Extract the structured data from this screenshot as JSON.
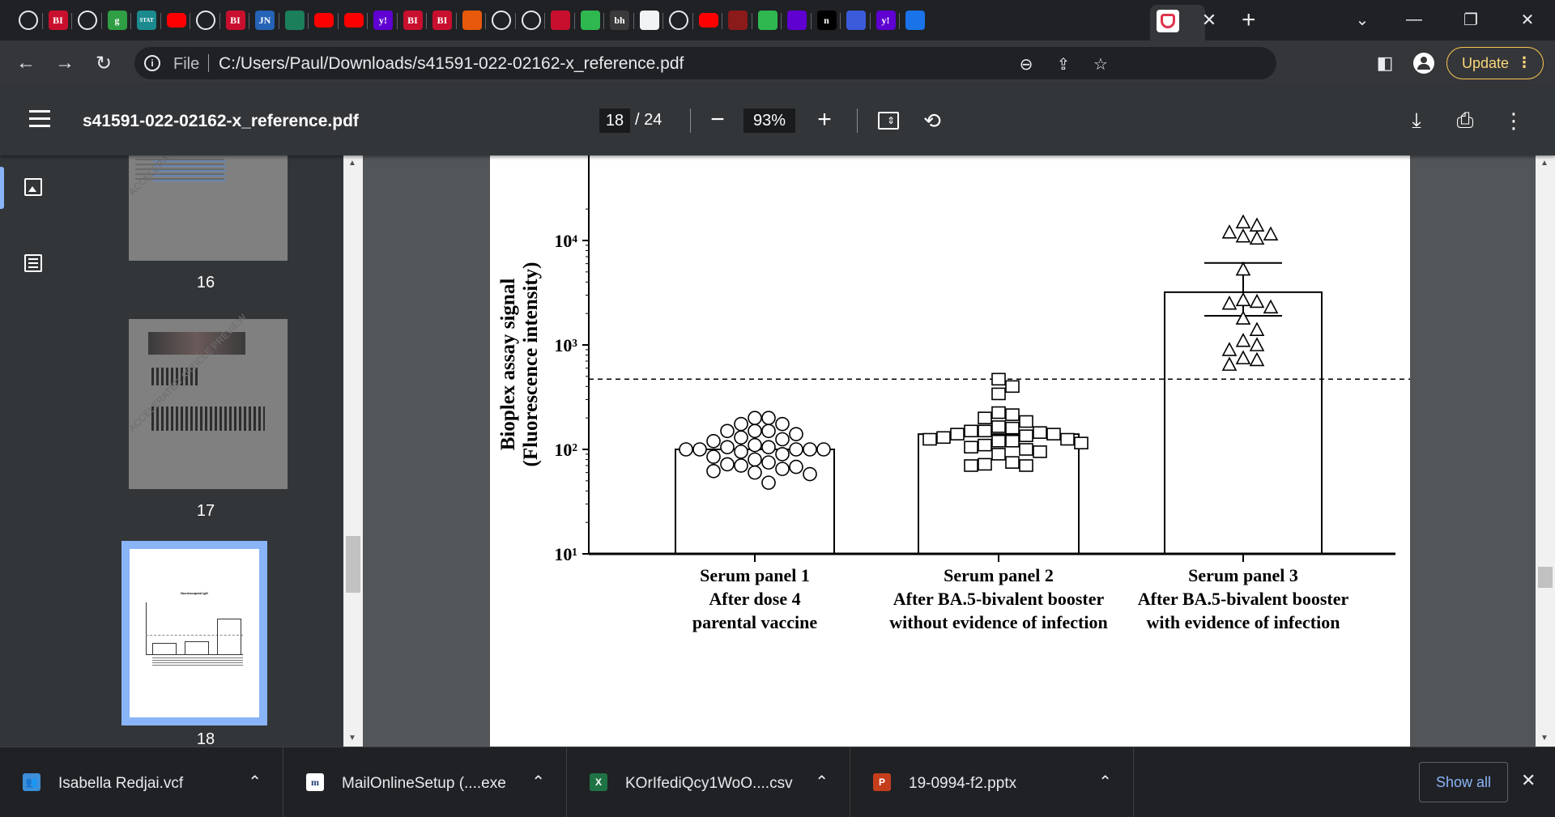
{
  "browser": {
    "tabs": [
      {
        "icon": "globe-icon",
        "text": ""
      },
      {
        "icon": "business-insider-icon",
        "text": "BI"
      },
      {
        "icon": "globe-icon",
        "text": ""
      },
      {
        "icon": "g-icon",
        "text": "g"
      },
      {
        "icon": "stat-icon",
        "text": "STAT"
      },
      {
        "icon": "youtube-icon",
        "text": ""
      },
      {
        "icon": "globe-icon",
        "text": ""
      },
      {
        "icon": "business-insider-icon",
        "text": "BI"
      },
      {
        "icon": "jn-icon",
        "text": "JN"
      },
      {
        "icon": "tree-icon",
        "text": ""
      },
      {
        "icon": "youtube-icon",
        "text": ""
      },
      {
        "icon": "youtube-icon",
        "text": ""
      },
      {
        "icon": "yahoo-icon",
        "text": "y!"
      },
      {
        "icon": "business-insider-icon",
        "text": "BI"
      },
      {
        "icon": "business-insider-icon",
        "text": "BI"
      },
      {
        "icon": "bookmarks-icon",
        "text": ""
      },
      {
        "icon": "globe-icon",
        "text": ""
      },
      {
        "icon": "globe-icon",
        "text": ""
      },
      {
        "icon": "mic-icon",
        "text": ""
      },
      {
        "icon": "play-icon",
        "text": ""
      },
      {
        "icon": "bh-icon",
        "text": "bh"
      },
      {
        "icon": "sheets-icon",
        "text": ""
      },
      {
        "icon": "globe-icon",
        "text": ""
      },
      {
        "icon": "youtube-icon",
        "text": ""
      },
      {
        "icon": "bird-icon",
        "text": ""
      },
      {
        "icon": "play-icon",
        "text": ""
      },
      {
        "icon": "mail-icon",
        "text": ""
      },
      {
        "icon": "n-icon",
        "text": "n"
      },
      {
        "icon": "chevron-icon",
        "text": ""
      },
      {
        "icon": "yahoo-icon",
        "text": "y!"
      },
      {
        "icon": "search-icon",
        "text": ""
      },
      {
        "icon": "pocket-icon",
        "text": ""
      }
    ],
    "url_scheme_label": "File",
    "url": "C:/Users/Paul/Downloads/s41591-022-02162-x_reference.pdf",
    "update_label": "Update"
  },
  "pdf": {
    "filename": "s41591-022-02162-x_reference.pdf",
    "current_page": "18",
    "total_pages": "/ 24",
    "zoom": "93%",
    "thumbnails": [
      {
        "label": "16"
      },
      {
        "label": "17"
      },
      {
        "label": "18"
      }
    ],
    "thumb_watermark": "ACCELERATED ARTICLE PREVIEW",
    "thumb18_title": "Nucleocapsid IgG"
  },
  "chart_data": {
    "type": "scatter",
    "ylabel_line1": "Bioplex assay signal",
    "ylabel_line2": "(Fluorescence intensity)",
    "yscale": "log",
    "ylim": [
      10,
      30000
    ],
    "yticks": [
      "10¹",
      "10²",
      "10³",
      "10⁴"
    ],
    "cutoff": 470,
    "categories": [
      {
        "lines": [
          "Serum panel 1",
          "After dose 4",
          "parental vaccine"
        ]
      },
      {
        "lines": [
          "Serum panel 2",
          "After BA.5-bivalent booster",
          "without evidence of infection"
        ]
      },
      {
        "lines": [
          "Serum panel 3",
          "After BA.5-bivalent booster",
          "with evidence of infection"
        ]
      }
    ],
    "series": [
      {
        "marker": "circle",
        "bar": 100,
        "values": [
          200,
          200,
          175,
          175,
          150,
          150,
          150,
          140,
          130,
          125,
          120,
          110,
          105,
          105,
          100,
          100,
          100,
          100,
          100,
          95,
          90,
          85,
          80,
          75,
          72,
          70,
          68,
          65,
          62,
          60,
          58,
          48
        ]
      },
      {
        "marker": "square",
        "bar": 140,
        "values": [
          470,
          400,
          340,
          225,
          215,
          200,
          185,
          165,
          160,
          150,
          150,
          145,
          140,
          140,
          135,
          130,
          125,
          125,
          120,
          120,
          115,
          110,
          105,
          100,
          95,
          90,
          75,
          72,
          70,
          70
        ],
        "error_bar": null
      },
      {
        "marker": "triangle",
        "bar": 3200,
        "error_upper": 6100,
        "error_lower": 1900,
        "values": [
          15000,
          14000,
          12000,
          11500,
          11000,
          10500,
          5300,
          2700,
          2600,
          2500,
          2300,
          1800,
          1400,
          1100,
          1000,
          900,
          750,
          720,
          650
        ]
      }
    ]
  },
  "downloads": {
    "items": [
      {
        "icon": "contact-icon",
        "name": "Isabella Redjai.vcf"
      },
      {
        "icon": "installer-icon",
        "name": "MailOnlineSetup (....exe"
      },
      {
        "icon": "excel-icon",
        "name": "KOrIfediQcy1WoO....csv"
      },
      {
        "icon": "powerpoint-icon",
        "name": "19-0994-f2.pptx"
      }
    ],
    "show_all_label": "Show all"
  },
  "colors": {
    "tab_bg": "#202124",
    "toolbar_bg": "#35363a",
    "pdf_bar_bg": "#323639",
    "doc_bg": "#525659",
    "accent": "#8ab4f8",
    "update_accent": "#f9c74f"
  }
}
